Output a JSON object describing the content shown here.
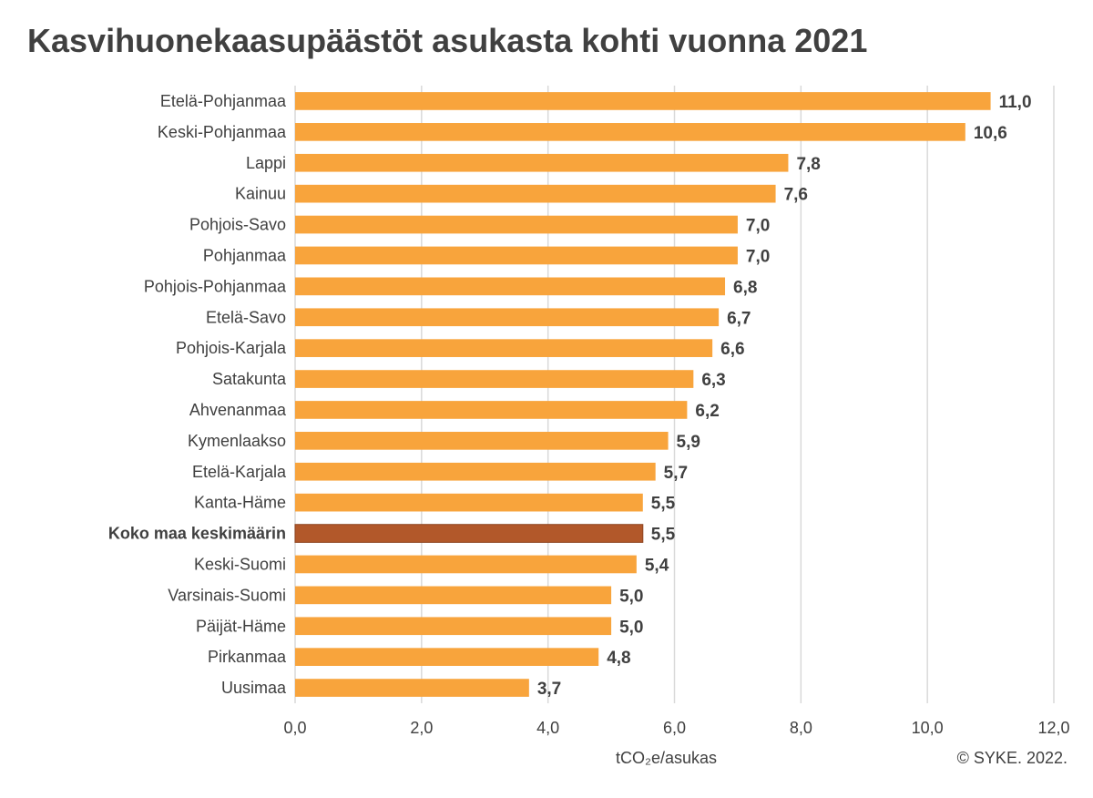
{
  "title": "Kasvihuonekaasupäästöt asukasta kohti vuonna 2021",
  "credit": "© SYKE. 2022.",
  "colors": {
    "bar": "#F8A43C",
    "highlight": "#B2582A",
    "grid": "#D9D9D9",
    "text": "#404040"
  },
  "chart_data": {
    "type": "bar",
    "orientation": "horizontal",
    "title": "Kasvihuonekaasupäästöt asukasta kohti vuonna 2021",
    "xlabel": "tCO₂e/asukas",
    "ylabel": "",
    "xlim": [
      0,
      12
    ],
    "xticks": [
      "0,0",
      "2,0",
      "4,0",
      "6,0",
      "8,0",
      "10,0",
      "12,0"
    ],
    "grid": true,
    "highlight_category": "Koko maa keskimäärin",
    "categories": [
      "Etelä-Pohjanmaa",
      "Keski-Pohjanmaa",
      "Lappi",
      "Kainuu",
      "Pohjois-Savo",
      "Pohjanmaa",
      "Pohjois-Pohjanmaa",
      "Etelä-Savo",
      "Pohjois-Karjala",
      "Satakunta",
      "Ahvenanmaa",
      "Kymenlaakso",
      "Etelä-Karjala",
      "Kanta-Häme",
      "Koko maa keskimäärin",
      "Keski-Suomi",
      "Varsinais-Suomi",
      "Päijät-Häme",
      "Pirkanmaa",
      "Uusimaa"
    ],
    "values": [
      11.0,
      10.6,
      7.8,
      7.6,
      7.0,
      7.0,
      6.8,
      6.7,
      6.6,
      6.3,
      6.2,
      5.9,
      5.7,
      5.5,
      5.5,
      5.4,
      5.0,
      5.0,
      4.8,
      3.7
    ],
    "value_labels": [
      "11,0",
      "10,6",
      "7,8",
      "7,6",
      "7,0",
      "7,0",
      "6,8",
      "6,7",
      "6,6",
      "6,3",
      "6,2",
      "5,9",
      "5,7",
      "5,5",
      "5,5",
      "5,4",
      "5,0",
      "5,0",
      "4,8",
      "3,7"
    ]
  }
}
